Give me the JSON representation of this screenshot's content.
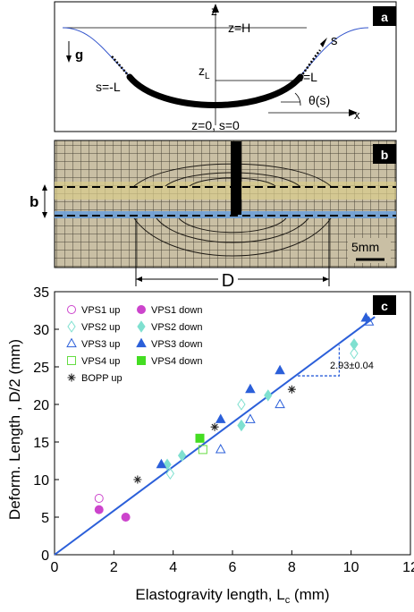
{
  "panel_a": {
    "tag": "a",
    "z_axis": "z",
    "x_axis": "x",
    "z_eq_H": "z=H",
    "z_L": "z",
    "z_L_sub": "L",
    "s_eq_L": "s=L",
    "s_eq_minus_L": "s=-L",
    "s_arrow": "s",
    "theta": "θ(s)",
    "gravity": "g",
    "origin": "z=0, s=0"
  },
  "panel_b": {
    "tag": "b",
    "b_label": "b",
    "D_label": "D",
    "scale_label": "5mm"
  },
  "panel_c": {
    "tag": "c",
    "slope_label": "2.93±0.04"
  },
  "chart_data": {
    "type": "scatter",
    "xlabel": "Elastogravity length, L",
    "xlabel_sub": "c",
    "xlabel_unit": " (mm)",
    "ylabel": "Deform. Length , D/2 (mm)",
    "xlim": [
      0,
      12
    ],
    "ylim": [
      0,
      35
    ],
    "xticks": [
      0,
      2,
      4,
      6,
      8,
      10,
      12
    ],
    "yticks": [
      0,
      5,
      10,
      15,
      20,
      25,
      30,
      35
    ],
    "grid": false,
    "legend_position": "top-left",
    "fit_line": {
      "slope": 2.93,
      "intercept": 0,
      "label": "2.93±0.04",
      "color": "#2b5fd9"
    },
    "series": [
      {
        "name": "VPS1 up",
        "marker": "circle",
        "filled": false,
        "color": "#cc44cc",
        "points": [
          [
            1.5,
            7.5
          ]
        ]
      },
      {
        "name": "VPS1 down",
        "marker": "circle",
        "filled": true,
        "color": "#cc44cc",
        "points": [
          [
            1.5,
            6.0
          ],
          [
            2.4,
            5.0
          ]
        ]
      },
      {
        "name": "VPS2 up",
        "marker": "diamond",
        "filled": false,
        "color": "#7fe0d0",
        "points": [
          [
            3.9,
            10.8
          ],
          [
            6.3,
            20.0
          ],
          [
            10.1,
            26.8
          ]
        ]
      },
      {
        "name": "VPS2 down",
        "marker": "diamond",
        "filled": true,
        "color": "#7fe0d0",
        "points": [
          [
            3.8,
            12.0
          ],
          [
            4.3,
            13.2
          ],
          [
            6.3,
            17.2
          ],
          [
            7.2,
            21.2
          ],
          [
            10.1,
            28.0
          ]
        ]
      },
      {
        "name": "VPS3 up",
        "marker": "triangle",
        "filled": false,
        "color": "#2b5fd9",
        "points": [
          [
            5.6,
            14.0
          ],
          [
            6.6,
            18.0
          ],
          [
            7.6,
            20.0
          ],
          [
            10.6,
            31.0
          ]
        ]
      },
      {
        "name": "VPS3 down",
        "marker": "triangle",
        "filled": true,
        "color": "#2b5fd9",
        "points": [
          [
            3.6,
            12.0
          ],
          [
            5.6,
            18.0
          ],
          [
            6.6,
            22.0
          ],
          [
            7.6,
            24.5
          ],
          [
            10.5,
            31.5
          ]
        ]
      },
      {
        "name": "VPS4 up",
        "marker": "square",
        "filled": false,
        "color": "#66dd44",
        "points": [
          [
            5.0,
            14.0
          ]
        ]
      },
      {
        "name": "VPS4 down",
        "marker": "square",
        "filled": true,
        "color": "#44dd22",
        "points": [
          [
            4.9,
            15.5
          ]
        ]
      },
      {
        "name": "BOPP up",
        "marker": "star",
        "filled": false,
        "color": "#222222",
        "points": [
          [
            2.8,
            10.0
          ],
          [
            5.4,
            17.0
          ],
          [
            8.0,
            22.0
          ]
        ]
      }
    ]
  }
}
